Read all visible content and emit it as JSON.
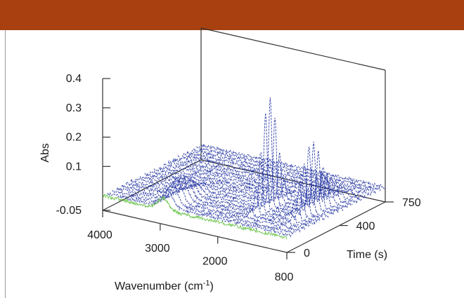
{
  "chart_data": {
    "type": "waterfall-3d-line",
    "x_axis": {
      "label_main": "Wavenumber (cm",
      "label_sup": "-1",
      "label_close": ")",
      "range": [
        4000,
        800
      ],
      "ticks": [
        4000,
        3000,
        2000,
        800
      ],
      "tick_labels": [
        "4000",
        "3000",
        "2000",
        "800"
      ]
    },
    "y_axis": {
      "label": "Time (s)",
      "range": [
        0,
        750
      ],
      "ticks": [
        0,
        400,
        750
      ],
      "tick_labels": [
        "0",
        "400",
        "750"
      ]
    },
    "z_axis": {
      "label": "Abs",
      "range": [
        -0.05,
        0.4
      ],
      "ticks": [
        -0.05,
        0.1,
        0.2,
        0.3,
        0.4
      ],
      "tick_labels": [
        "-0.05",
        "0.1",
        "0.2",
        "0.3",
        "0.4"
      ]
    },
    "spectra_count": 22,
    "baseline_abs": 0.0,
    "peaks": [
      {
        "wavenumber": 2950,
        "max_abs": 0.08,
        "time_center": 120,
        "time_width": 200
      },
      {
        "wavenumber": 1740,
        "max_abs": 0.37,
        "time_center": 280,
        "time_width": 120
      },
      {
        "wavenumber": 1230,
        "max_abs": 0.22,
        "time_center": 380,
        "time_width": 150
      },
      {
        "wavenumber": 1090,
        "max_abs": 0.12,
        "time_center": 380,
        "time_width": 220
      }
    ],
    "line_color": "#1d2f9e",
    "initial_spectrum_color": "#5cbf3a"
  }
}
